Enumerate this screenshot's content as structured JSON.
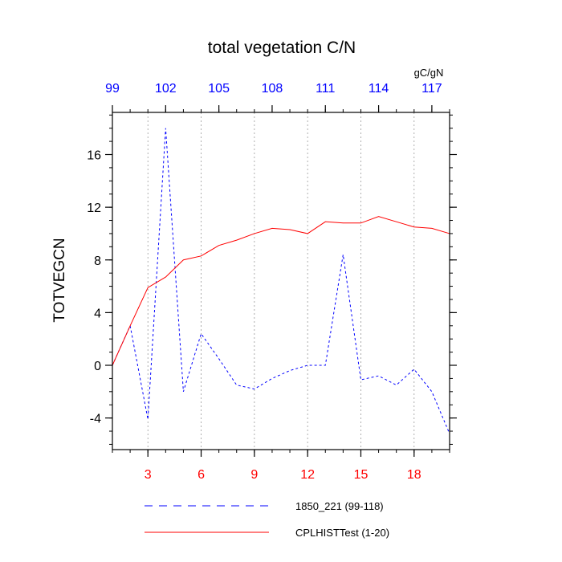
{
  "chart_data": {
    "type": "line",
    "title": "total vegetation C/N",
    "ylabel": "TOTVEGCN",
    "units_label": "gC/gN",
    "ylim": [
      -6.4,
      19.2
    ],
    "xlim": [
      1,
      20
    ],
    "y_ticks": [
      "-4",
      "0",
      "4",
      "8",
      "12",
      "16"
    ],
    "x_bottom_ticks": [
      "3",
      "6",
      "9",
      "12",
      "15",
      "18"
    ],
    "x_top_ticks": [
      "99",
      "102",
      "105",
      "108",
      "111",
      "114",
      "117"
    ],
    "grid": "vertical dotted lines at bottom tick positions",
    "legend_position": "bottom",
    "series": [
      {
        "name": "1850_221 (99-118)",
        "color": "#0000ff",
        "style": "dashed",
        "x": [
          1,
          2,
          3,
          4,
          5,
          6,
          7,
          8,
          9,
          10,
          11,
          12,
          13,
          14,
          15,
          16,
          17,
          18,
          19,
          20
        ],
        "values": [
          0.0,
          3.0,
          -4.1,
          18.0,
          -2.0,
          2.4,
          0.5,
          -1.5,
          -1.8,
          -1.0,
          -0.4,
          0.0,
          0.0,
          8.4,
          -1.1,
          -0.8,
          -1.5,
          -0.3,
          -2.0,
          -5.2
        ]
      },
      {
        "name": "CPLHISTTest (1-20)",
        "color": "#ff0000",
        "style": "solid",
        "x": [
          1,
          2,
          3,
          4,
          5,
          6,
          7,
          8,
          9,
          10,
          11,
          12,
          13,
          14,
          15,
          16,
          17,
          18,
          19,
          20
        ],
        "values": [
          0.0,
          3.0,
          5.9,
          6.7,
          8.0,
          8.3,
          9.1,
          9.5,
          10.0,
          10.4,
          10.3,
          10.0,
          10.9,
          10.8,
          10.8,
          11.3,
          10.9,
          10.5,
          10.4,
          10.0
        ]
      }
    ]
  }
}
